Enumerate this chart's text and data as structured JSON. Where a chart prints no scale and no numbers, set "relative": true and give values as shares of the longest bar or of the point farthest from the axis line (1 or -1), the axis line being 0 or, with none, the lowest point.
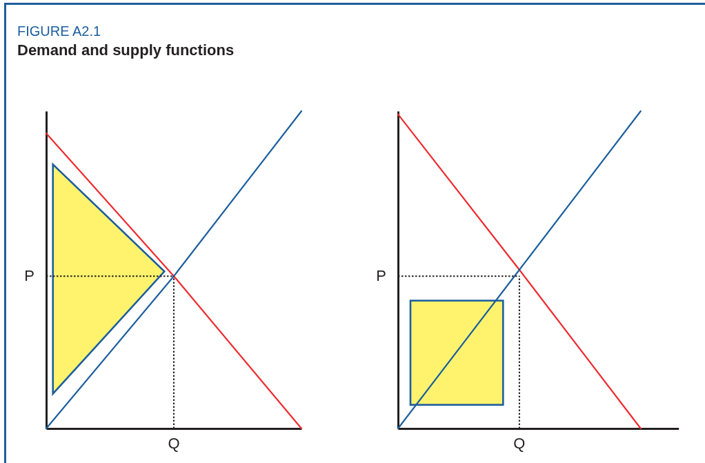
{
  "chart_data": [
    {
      "type": "line",
      "title": "FIGURE A2.1",
      "subtitle": "Demand and supply functions",
      "relative": true,
      "categories": [
        null,
        null,
        null
      ],
      "series": [
        {
          "color": "#ee2a2e",
          "values": [
            0.93,
            0.48,
            0
          ]
        },
        {
          "color": "#1c5e9c",
          "values": [
            0,
            0.48,
            1
          ]
        }
      ],
      "ref_lines": [
        {
          "axis": "y",
          "value": 0.48,
          "label": "P",
          "line_style": "dotted",
          "color": "#231f20"
        }
      ],
      "annotations": [
        "Q"
      ]
    },
    {
      "type": "line",
      "relative": true,
      "categories": [
        null,
        null,
        null
      ],
      "series": [
        {
          "color": "#ee2a2e",
          "values": [
            0.99,
            0.5,
            0
          ]
        },
        {
          "color": "#1c5e9c",
          "values": [
            0,
            0.5,
            1
          ]
        }
      ],
      "ref_lines": [
        {
          "axis": "y",
          "value": 0.48,
          "label": "P",
          "line_style": "dotted",
          "color": "#231f20"
        }
      ],
      "annotations": [
        "Q"
      ]
    }
  ]
}
